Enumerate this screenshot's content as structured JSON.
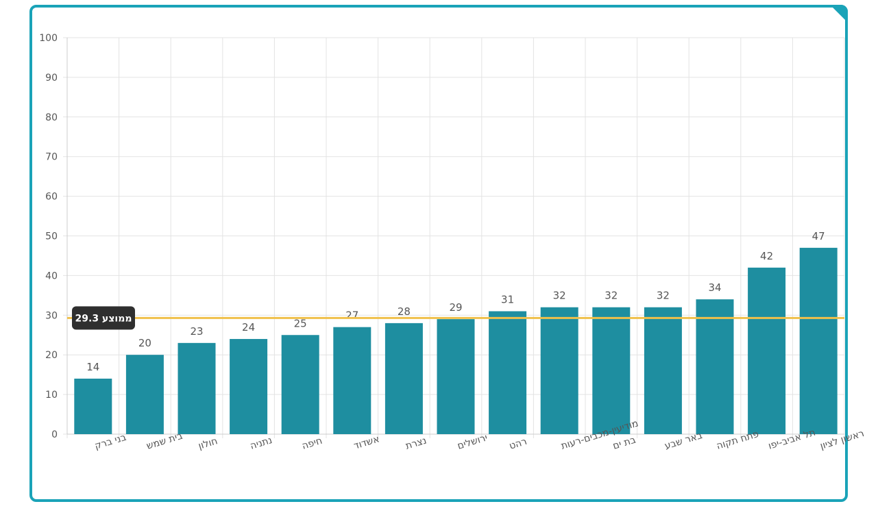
{
  "colors": {
    "bar": "#1e8ea0",
    "average_line": "#f0c04a",
    "frame": "#1aa3b8",
    "grid": "#e3e3e3",
    "badge": "#2f2f2f"
  },
  "chart_data": {
    "type": "bar",
    "title": "",
    "xlabel": "",
    "ylabel": "",
    "ylim": [
      0,
      100
    ],
    "yticks": [
      0,
      10,
      20,
      30,
      40,
      50,
      60,
      70,
      80,
      90,
      100
    ],
    "grid": true,
    "categories": [
      "בני ברק",
      "בית שמש",
      "חולון",
      "נתניה",
      "חיפה",
      "אשדוד",
      "נצרת",
      "ירושלים",
      "רהט",
      "מודיעין-מכבים-רעות",
      "בת ים",
      "באר שבע",
      "פתח תקוה",
      "תל אביב-יפו",
      "ראשון לציון"
    ],
    "values": [
      14,
      20,
      23,
      24,
      25,
      27,
      28,
      29,
      31,
      32,
      32,
      32,
      34,
      42,
      47
    ],
    "value_labels": [
      "14",
      "20",
      "23",
      "24",
      "25",
      "27",
      "28",
      "29",
      "31",
      "32",
      "32",
      "32",
      "34",
      "42",
      "47"
    ],
    "average": 29.3,
    "average_label": "ממוצע 29.3"
  }
}
